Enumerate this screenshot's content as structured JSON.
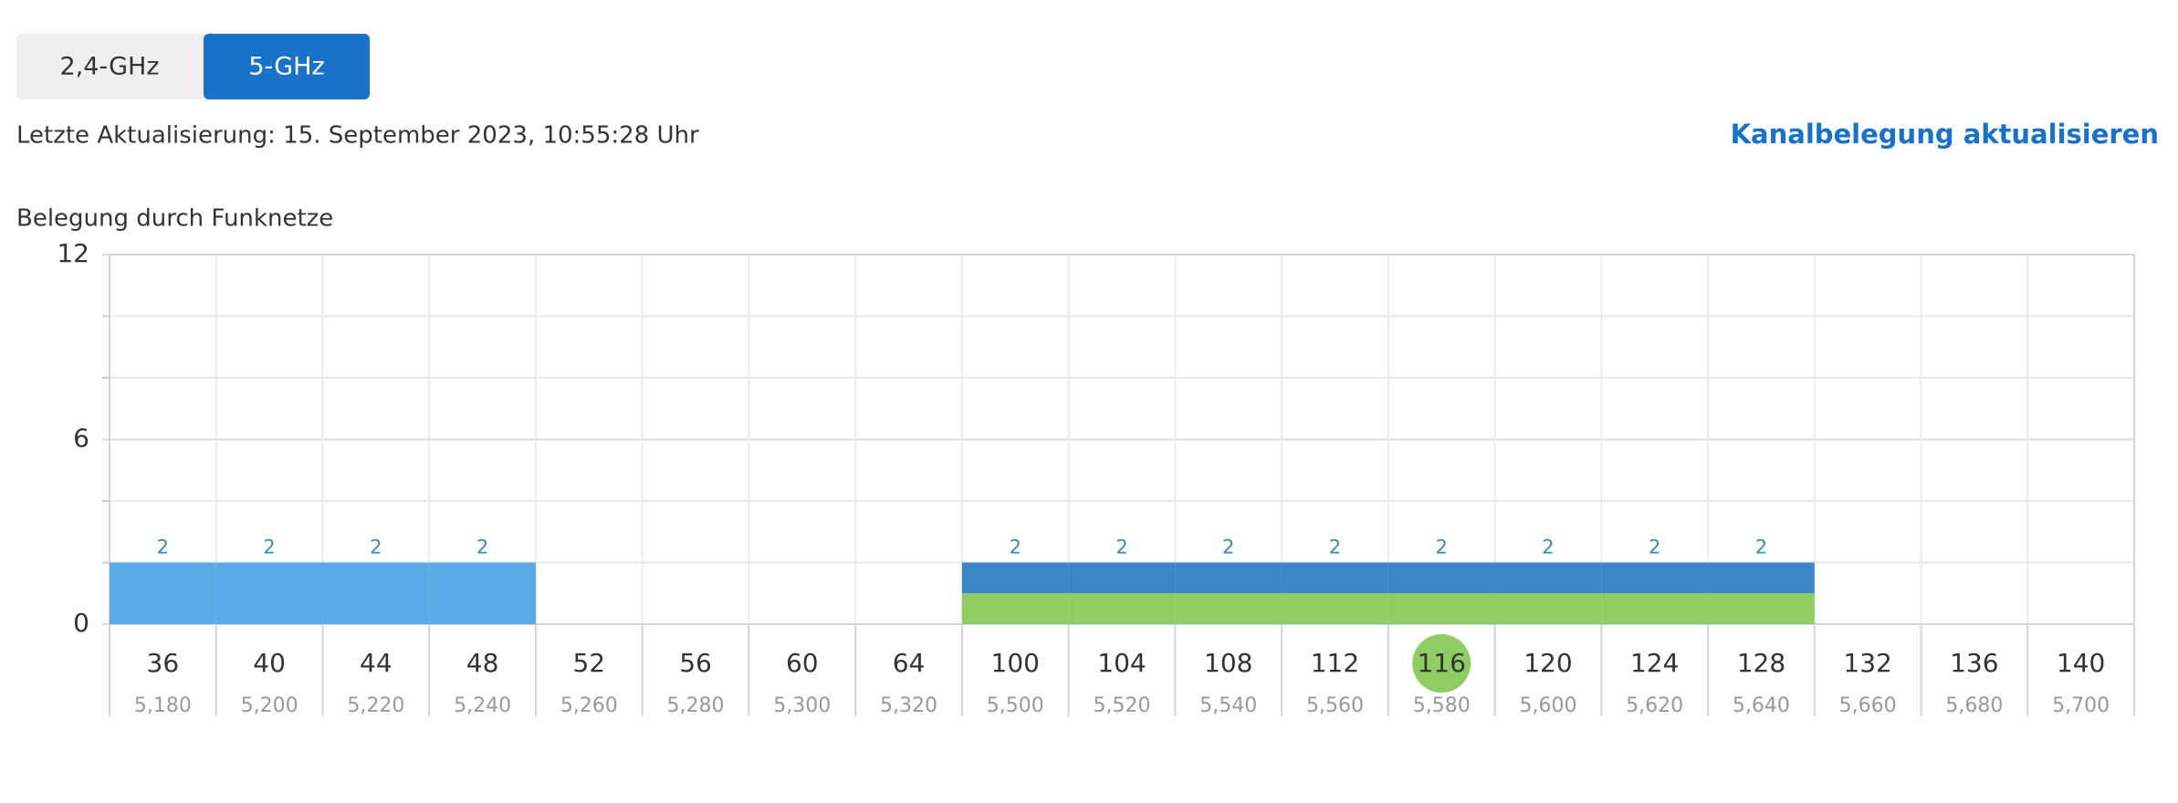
{
  "tabs": [
    "2,4-GHz",
    "5-GHz"
  ],
  "active_tab": 1,
  "last_update": "Letzte Aktualisierung: 15. September 2023, 10:55:28 Uhr",
  "refresh_link": "Kanalbelegung aktualisieren",
  "chart_data": {
    "type": "bar",
    "title": "Belegung durch Funknetze",
    "categories": [
      "36",
      "40",
      "44",
      "48",
      "52",
      "56",
      "60",
      "64",
      "100",
      "104",
      "108",
      "112",
      "116",
      "120",
      "124",
      "128",
      "132",
      "136",
      "140"
    ],
    "sublabels": [
      "5,180",
      "5,200",
      "5,220",
      "5,240",
      "5,260",
      "5,280",
      "5,300",
      "5,320",
      "5,500",
      "5,520",
      "5,540",
      "5,560",
      "5,580",
      "5,600",
      "5,620",
      "5,640",
      "5,660",
      "5,680",
      "5,700"
    ],
    "series": [
      {
        "color": "#8fcc63",
        "values": [
          null,
          null,
          null,
          null,
          null,
          null,
          null,
          null,
          1,
          1,
          1,
          1,
          1,
          1,
          1,
          1,
          null,
          null,
          null
        ]
      },
      {
        "color": "#5aaae8",
        "values": [
          2,
          2,
          2,
          2,
          null,
          null,
          null,
          null,
          null,
          null,
          null,
          null,
          null,
          null,
          null,
          null,
          null,
          null,
          null
        ]
      },
      {
        "color": "#3a86c6",
        "values": [
          null,
          null,
          null,
          null,
          null,
          null,
          null,
          null,
          1,
          1,
          1,
          1,
          1,
          1,
          1,
          1,
          null,
          null,
          null
        ]
      }
    ],
    "bar_totals": [
      2,
      2,
      2,
      2,
      null,
      null,
      null,
      null,
      2,
      2,
      2,
      2,
      2,
      2,
      2,
      2,
      null,
      null,
      null
    ],
    "ylim": [
      0,
      12
    ],
    "yticks": [
      0,
      6,
      12
    ],
    "minor_yticks": [
      2,
      4,
      8,
      10
    ],
    "grid": true,
    "highlight": "116",
    "highlight_color": "#8fcc63"
  }
}
